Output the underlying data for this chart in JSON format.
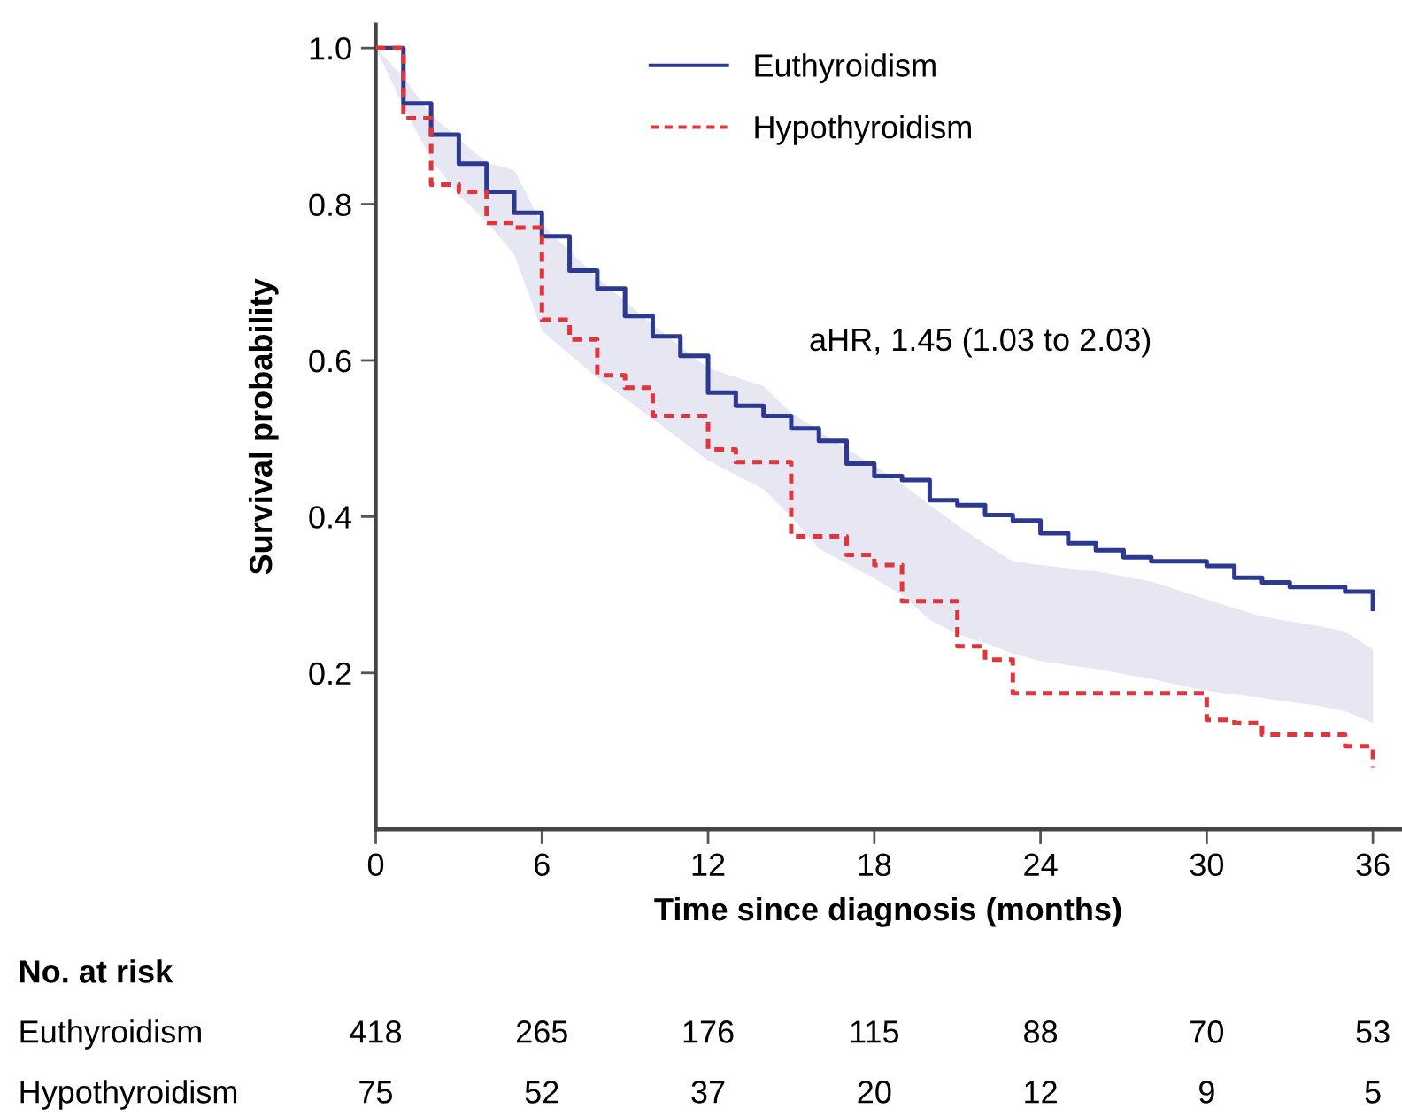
{
  "chart_data": {
    "type": "step",
    "xlabel": "Time since diagnosis (months)",
    "ylabel": "Survival probability",
    "xlim": [
      0,
      37
    ],
    "xticks": [
      0,
      6,
      12,
      18,
      24,
      30,
      36
    ],
    "ylim": [
      0,
      1.03
    ],
    "yticks": [
      {
        "value": 0.2,
        "label": "0.2"
      },
      {
        "value": 0.4,
        "label": "0.4"
      },
      {
        "value": 0.6,
        "label": "0.6"
      },
      {
        "value": 0.8,
        "label": "0.8"
      },
      {
        "value": 1.0,
        "label": "1.0"
      }
    ],
    "grid": false,
    "legend": "top",
    "marker": "none",
    "series": [
      {
        "type": "area",
        "color": "#e6e7f3",
        "values": [
          null,
          null,
          null,
          null,
          null,
          null,
          null,
          null,
          null,
          null,
          null,
          null,
          null,
          null,
          null,
          null,
          null,
          null,
          null,
          null,
          null,
          null,
          null,
          null,
          null,
          null,
          null,
          null
        ],
        "x": [
          0,
          1,
          2,
          3,
          4,
          5,
          6,
          8,
          10,
          12,
          14,
          15,
          16,
          17,
          18,
          19,
          20,
          21,
          22,
          23,
          24,
          26,
          28,
          30,
          32,
          34,
          35,
          36
        ],
        "lower": [
          1.0,
          0.925,
          0.857,
          0.812,
          0.778,
          0.736,
          0.638,
          0.578,
          0.525,
          0.472,
          0.435,
          0.4,
          0.359,
          0.34,
          0.321,
          0.3,
          0.268,
          0.25,
          0.238,
          0.225,
          0.215,
          0.205,
          0.192,
          0.177,
          0.168,
          0.158,
          0.151,
          0.136
        ],
        "upper": [
          1.0,
          0.963,
          0.914,
          0.884,
          0.853,
          0.844,
          0.774,
          0.706,
          0.646,
          0.59,
          0.567,
          0.533,
          0.51,
          0.487,
          0.465,
          0.442,
          0.415,
          0.389,
          0.365,
          0.343,
          0.338,
          0.33,
          0.317,
          0.294,
          0.272,
          0.26,
          0.253,
          0.23
        ]
      },
      {
        "name": "Euthyroidism",
        "color": "#2b3990",
        "line_style": "solid",
        "x": [
          0,
          1,
          2,
          3,
          4,
          5,
          6,
          7,
          8,
          9,
          10,
          11,
          12,
          13,
          14,
          15,
          16,
          17,
          18,
          19,
          20,
          21,
          22,
          23,
          24,
          25,
          26,
          27,
          28,
          30,
          31,
          32,
          33,
          35,
          36
        ],
        "values": [
          1.0,
          0.929,
          0.889,
          0.852,
          0.816,
          0.789,
          0.759,
          0.715,
          0.692,
          0.657,
          0.631,
          0.606,
          0.559,
          0.542,
          0.529,
          0.513,
          0.497,
          0.468,
          0.452,
          0.447,
          0.421,
          0.415,
          0.402,
          0.395,
          0.379,
          0.366,
          0.357,
          0.348,
          0.343,
          0.337,
          0.322,
          0.316,
          0.31,
          0.304,
          0.282
        ]
      },
      {
        "name": "Hypothyroidism",
        "color": "#e0353b",
        "line_style": "dashed",
        "x": [
          0,
          1,
          2,
          3,
          4,
          5,
          6,
          7,
          8,
          9,
          10,
          12,
          13,
          15,
          17,
          18,
          19,
          21,
          22,
          23,
          30,
          31,
          32,
          35,
          36
        ],
        "values": [
          1.0,
          0.91,
          0.825,
          0.816,
          0.776,
          0.77,
          0.652,
          0.627,
          0.581,
          0.565,
          0.529,
          0.486,
          0.47,
          0.375,
          0.351,
          0.338,
          0.292,
          0.234,
          0.217,
          0.174,
          0.14,
          0.136,
          0.121,
          0.106,
          0.079
        ]
      }
    ],
    "annotations": [
      "aHR, 1.45 (1.03 to 2.03)",
      "No. at risk",
      "Euthyroidism",
      "418",
      "265",
      "176",
      "115",
      "88",
      "70",
      "53",
      "Hypothyroidism",
      "75",
      "52",
      "37",
      "20",
      "12",
      "9",
      "5"
    ]
  }
}
